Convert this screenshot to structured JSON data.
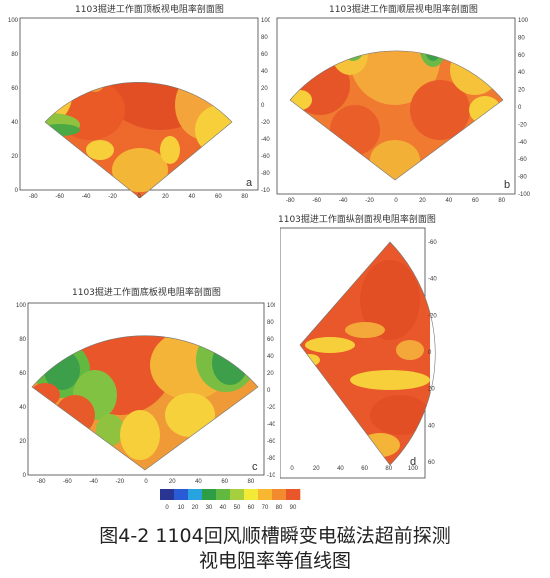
{
  "chart_data": [
    {
      "type": "heatmap",
      "id": "a",
      "title": "1103掘进工作面顶板视电阻率剖面图",
      "panel_letter": "a",
      "x_ticks": [
        "-80",
        "-60",
        "-40",
        "-20",
        "0",
        "20",
        "40",
        "60",
        "80"
      ],
      "y_left_ticks": [
        "0",
        "20",
        "40",
        "60",
        "80",
        "100"
      ],
      "y_right_ticks": [
        "-100",
        "-80",
        "-60",
        "-40",
        "-20",
        "0",
        "20",
        "40",
        "60",
        "80",
        "100"
      ],
      "xlim": [
        -90,
        90
      ],
      "ylim": [
        0,
        100
      ],
      "shape": "fan",
      "dominant": "high (orange-red)"
    },
    {
      "type": "heatmap",
      "id": "b",
      "title": "1103掘进工作面顺层视电阻率剖面图",
      "panel_letter": "b",
      "x_ticks": [
        "-80",
        "-60",
        "-40",
        "-20",
        "0",
        "20",
        "40",
        "60",
        "80"
      ],
      "y_left_ticks": [
        "0",
        "20",
        "40",
        "60",
        "80",
        "100"
      ],
      "y_right_ticks": [
        "-100",
        "-80",
        "-60",
        "-40",
        "-20",
        "0",
        "20",
        "40",
        "60",
        "80",
        "100"
      ],
      "xlim": [
        -90,
        90
      ],
      "ylim": [
        0,
        100
      ],
      "shape": "fan",
      "dominant": "high (orange-red)"
    },
    {
      "type": "heatmap",
      "id": "c",
      "title": "1103掘进工作面底板视电阻率剖面图",
      "panel_letter": "c",
      "x_ticks": [
        "-80",
        "-60",
        "-40",
        "-20",
        "0",
        "20",
        "40",
        "60",
        "80"
      ],
      "y_left_ticks": [
        "0",
        "20",
        "40",
        "60",
        "80",
        "100"
      ],
      "y_right_ticks": [
        "-100",
        "-80",
        "-60",
        "-40",
        "-20",
        "0",
        "20",
        "40",
        "60",
        "80",
        "100"
      ],
      "xlim": [
        -90,
        90
      ],
      "ylim": [
        0,
        100
      ],
      "shape": "fan",
      "dominant": "high (orange-red)"
    },
    {
      "type": "heatmap",
      "id": "d",
      "title": "1103掘进工作面纵剖面视电阻率剖面图",
      "panel_letter": "d",
      "x_ticks": [
        "0",
        "20",
        "40",
        "60",
        "80",
        "100"
      ],
      "y_right_ticks": [
        "60",
        "40",
        "20",
        "0",
        "-20",
        "-40",
        "-60"
      ],
      "xlim": [
        0,
        100
      ],
      "ylim": [
        -70,
        70
      ],
      "shape": "vertical fan",
      "dominant": "high (orange-red)"
    }
  ],
  "colorbar": {
    "ticks": [
      "0",
      "10",
      "20",
      "30",
      "40",
      "50",
      "60",
      "70",
      "80",
      "90"
    ],
    "colors": [
      "#283593",
      "#2a5bd7",
      "#27a3e0",
      "#2e9e46",
      "#62b93f",
      "#a6cf3e",
      "#f2ea36",
      "#f7b731",
      "#f28a2e",
      "#e8562a"
    ]
  },
  "caption": {
    "line1": "图4-2 1104回风顺槽瞬变电磁法超前探测",
    "line2": "视电阻率等值线图"
  }
}
